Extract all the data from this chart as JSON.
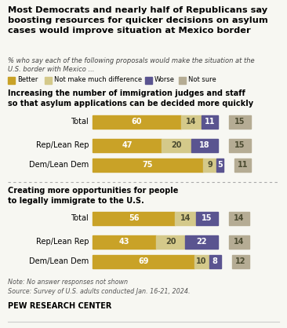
{
  "title": "Most Democrats and nearly half of Republicans say\nboosting resources for quicker decisions on asylum\ncases would improve situation at Mexico border",
  "subtitle": "% who say each of the following proposals would make the situation at the\nU.S. border with Mexico ...",
  "legend_labels": [
    "Better",
    "Not make much difference",
    "Worse",
    "Not sure"
  ],
  "colors": {
    "better": "#C9A227",
    "not_much": "#D4C98A",
    "worse": "#5A5490",
    "not_sure": "#B5AC94"
  },
  "section1_title": "Increasing the number of immigration judges and staff\nso that asylum applications can be decided more quickly",
  "section2_title": "Creating more opportunities for people\nto legally immigrate to the U.S.",
  "groups": [
    "Total",
    "Rep/Lean Rep",
    "Dem/Lean Dem"
  ],
  "section1": [
    {
      "better": 60,
      "not_much": 14,
      "worse": 11,
      "not_sure": 15
    },
    {
      "better": 47,
      "not_much": 20,
      "worse": 18,
      "not_sure": 15
    },
    {
      "better": 75,
      "not_much": 9,
      "worse": 5,
      "not_sure": 11
    }
  ],
  "section2": [
    {
      "better": 56,
      "not_much": 14,
      "worse": 15,
      "not_sure": 14
    },
    {
      "better": 43,
      "not_much": 20,
      "worse": 22,
      "not_sure": 14
    },
    {
      "better": 69,
      "not_much": 10,
      "worse": 8,
      "not_sure": 12
    }
  ],
  "note": "Note: No answer responses not shown",
  "source": "Source: Survey of U.S. adults conducted Jan. 16-21, 2024.",
  "footer": "PEW RESEARCH CENTER",
  "background_color": "#F7F7F2"
}
